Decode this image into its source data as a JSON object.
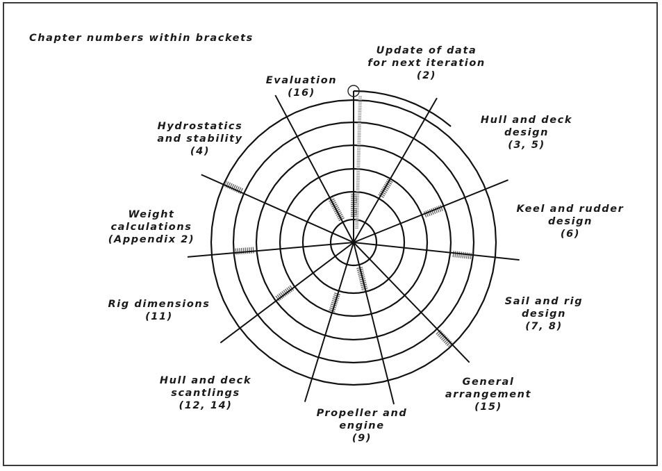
{
  "title": "Chapter numbers within brackets",
  "stages": [
    {
      "id": "update",
      "lines": [
        "Update of data",
        "for next iteration",
        "(2)"
      ]
    },
    {
      "id": "hull-deck-design",
      "lines": [
        "Hull and deck",
        "design",
        "(3, 5)"
      ]
    },
    {
      "id": "keel-rudder",
      "lines": [
        "Keel and rudder",
        "design",
        "(6)"
      ]
    },
    {
      "id": "sail-rig",
      "lines": [
        "Sail and rig",
        "design",
        "(7, 8)"
      ]
    },
    {
      "id": "general-arrangement",
      "lines": [
        "General",
        "arrangement",
        "(15)"
      ]
    },
    {
      "id": "propeller-engine",
      "lines": [
        "Propeller and",
        "engine",
        "(9)"
      ]
    },
    {
      "id": "hull-deck-scantlings",
      "lines": [
        "Hull and deck",
        "scantlings",
        "(12, 14)"
      ]
    },
    {
      "id": "rig-dimensions",
      "lines": [
        "Rig dimensions",
        "(11)"
      ]
    },
    {
      "id": "weight-calculations",
      "lines": [
        "Weight",
        "calculations",
        "(Appendix 2)"
      ]
    },
    {
      "id": "hydrostatics",
      "lines": [
        "Hydrostatics",
        "and stability",
        "(4)"
      ]
    },
    {
      "id": "evaluation",
      "lines": [
        "Evaluation",
        "(16)"
      ]
    }
  ],
  "colors": {
    "line": "#111111",
    "hatch": "#666666",
    "frame": "#3a3a3a"
  }
}
